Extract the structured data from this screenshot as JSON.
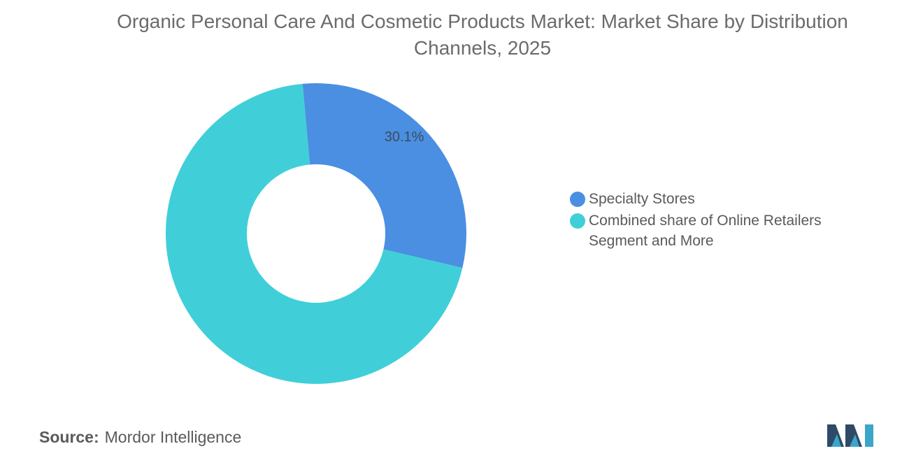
{
  "title": "Organic Personal Care And Cosmetic Products Market: Market Share by Distribution Channels, 2025",
  "chart_data": {
    "type": "pie",
    "style": "donut",
    "title": "Organic Personal Care And Cosmetic Products Market: Market Share by Distribution Channels, 2025",
    "series": [
      {
        "name": "Specialty Stores",
        "value": 30.1,
        "color": "#4a8fe2",
        "label": "30.1%"
      },
      {
        "name": "Combined share of Online Retailers Segment and More",
        "value": 69.9,
        "color": "#40cfd8"
      }
    ],
    "legend_position": "right"
  },
  "source": {
    "label": "Source:",
    "text": "Mordor Intelligence"
  },
  "logo": {
    "icon": "mordor-intelligence-logo",
    "colors": [
      "#2f4a68",
      "#3aa6c9"
    ]
  }
}
